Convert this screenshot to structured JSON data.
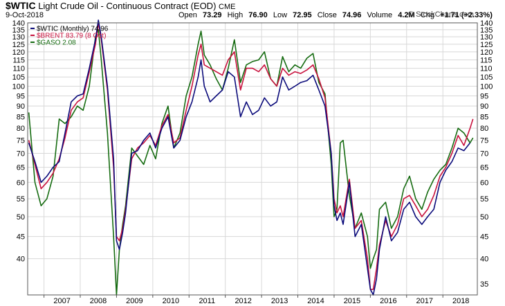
{
  "header": {
    "symbol": "$WTIC",
    "name": "Light Crude Oil - Continuous Contract (EOD)",
    "exchange": "CME",
    "date": "9-Oct-2018",
    "open_label": "Open",
    "open": "73.29",
    "high_label": "High",
    "high": "76.90",
    "low_label": "Low",
    "low": "72.95",
    "close_label": "Close",
    "close": "74.96",
    "volume_label": "Volume",
    "volume": "4.2M",
    "chg_label": "Chg",
    "chg": "+1.71 (+2.33%)",
    "copyright": "© StockCharts.com"
  },
  "colors": {
    "wtic": "#0a0a7a",
    "brent": "#c8103c",
    "gaso": "#156b10",
    "grid": "#d8d8d8",
    "frame": "#555555"
  },
  "chart_data": {
    "type": "line",
    "yscale": "log",
    "ylim": [
      33,
      140
    ],
    "xlim": [
      2006.55,
      2018.95
    ],
    "yticks_left": [
      40,
      45,
      50,
      55,
      60,
      65,
      70,
      75,
      80,
      85,
      90,
      95,
      100,
      105,
      110,
      115,
      120,
      125,
      130,
      135,
      140
    ],
    "yticks_right": [
      35,
      40,
      45,
      50,
      55,
      60,
      65,
      70,
      75,
      80,
      85,
      90,
      95,
      100,
      105,
      110,
      115,
      120,
      125,
      130,
      135,
      140
    ],
    "xticks": [
      "2007",
      "2008",
      "2009",
      "2010",
      "2011",
      "2012",
      "2013",
      "2014",
      "2015",
      "2016",
      "2017",
      "2018"
    ],
    "legend_position": "top-left",
    "series": [
      {
        "name": "$WTIC (Monthly) 74.96",
        "key": "wtic",
        "x": [
          2006.58,
          2006.75,
          2006.92,
          2007.08,
          2007.25,
          2007.42,
          2007.58,
          2007.75,
          2007.92,
          2008.08,
          2008.25,
          2008.42,
          2008.5,
          2008.58,
          2008.75,
          2008.92,
          2009.0,
          2009.08,
          2009.17,
          2009.25,
          2009.42,
          2009.58,
          2009.75,
          2009.92,
          2010.08,
          2010.25,
          2010.42,
          2010.58,
          2010.75,
          2010.92,
          2011.08,
          2011.25,
          2011.33,
          2011.42,
          2011.58,
          2011.75,
          2011.92,
          2012.08,
          2012.25,
          2012.42,
          2012.58,
          2012.75,
          2012.92,
          2013.08,
          2013.25,
          2013.42,
          2013.58,
          2013.75,
          2013.92,
          2014.08,
          2014.25,
          2014.42,
          2014.58,
          2014.75,
          2014.92,
          2015.0,
          2015.08,
          2015.17,
          2015.25,
          2015.42,
          2015.58,
          2015.75,
          2015.92,
          2016.0,
          2016.08,
          2016.17,
          2016.25,
          2016.42,
          2016.58,
          2016.75,
          2016.92,
          2017.08,
          2017.25,
          2017.42,
          2017.58,
          2017.75,
          2017.92,
          2018.08,
          2018.25,
          2018.42,
          2018.58,
          2018.75
        ],
        "y": [
          74,
          67,
          60,
          62,
          65,
          67,
          78,
          92,
          95,
          96,
          110,
          128,
          142,
          130,
          100,
          68,
          44,
          42,
          46,
          51,
          70,
          71,
          75,
          78,
          72,
          80,
          85,
          72,
          75,
          85,
          92,
          105,
          115,
          100,
          92,
          95,
          98,
          108,
          105,
          85,
          92,
          86,
          88,
          94,
          90,
          92,
          105,
          98,
          100,
          102,
          103,
          106,
          98,
          90,
          70,
          53,
          49,
          51,
          48,
          60,
          45,
          48,
          38,
          34,
          33,
          36,
          42,
          50,
          44,
          46,
          52,
          54,
          50,
          48,
          50,
          52,
          60,
          64,
          67,
          72,
          71,
          74
        ]
      },
      {
        "name": "$BRENT 83.79 (8 Oct)",
        "key": "brent",
        "x": [
          2006.58,
          2006.75,
          2006.92,
          2007.08,
          2007.25,
          2007.42,
          2007.58,
          2007.75,
          2007.92,
          2008.08,
          2008.25,
          2008.42,
          2008.5,
          2008.58,
          2008.75,
          2008.92,
          2009.0,
          2009.08,
          2009.17,
          2009.25,
          2009.42,
          2009.58,
          2009.75,
          2009.92,
          2010.08,
          2010.25,
          2010.42,
          2010.58,
          2010.75,
          2010.92,
          2011.08,
          2011.25,
          2011.33,
          2011.42,
          2011.58,
          2011.75,
          2011.92,
          2012.08,
          2012.25,
          2012.42,
          2012.58,
          2012.75,
          2012.92,
          2013.08,
          2013.25,
          2013.42,
          2013.58,
          2013.75,
          2013.92,
          2014.08,
          2014.25,
          2014.42,
          2014.58,
          2014.75,
          2014.92,
          2015.0,
          2015.08,
          2015.17,
          2015.25,
          2015.42,
          2015.58,
          2015.75,
          2015.92,
          2016.0,
          2016.08,
          2016.17,
          2016.25,
          2016.42,
          2016.58,
          2016.75,
          2016.92,
          2017.08,
          2017.25,
          2017.42,
          2017.58,
          2017.75,
          2017.92,
          2018.08,
          2018.25,
          2018.42,
          2018.58,
          2018.75,
          2018.83
        ],
        "y": [
          75,
          66,
          58,
          60,
          63,
          68,
          76,
          88,
          92,
          94,
          108,
          125,
          140,
          128,
          98,
          65,
          45,
          44,
          47,
          52,
          68,
          72,
          74,
          77,
          73,
          81,
          86,
          74,
          76,
          88,
          100,
          118,
          125,
          112,
          110,
          108,
          106,
          115,
          120,
          98,
          110,
          110,
          108,
          112,
          104,
          100,
          110,
          106,
          108,
          107,
          109,
          112,
          104,
          94,
          70,
          55,
          51,
          53,
          50,
          61,
          47,
          49,
          40,
          34,
          34,
          38,
          43,
          49,
          45,
          48,
          55,
          56,
          53,
          50,
          52,
          56,
          62,
          65,
          70,
          77,
          73,
          80,
          84
        ]
      },
      {
        "name": "$GASO 2.08",
        "key": "gaso",
        "x": [
          2006.58,
          2006.75,
          2006.92,
          2007.08,
          2007.25,
          2007.42,
          2007.58,
          2007.75,
          2007.92,
          2008.08,
          2008.25,
          2008.42,
          2008.5,
          2008.58,
          2008.75,
          2008.92,
          2009.0,
          2009.08,
          2009.17,
          2009.25,
          2009.42,
          2009.58,
          2009.75,
          2009.92,
          2010.08,
          2010.25,
          2010.42,
          2010.58,
          2010.75,
          2010.92,
          2011.08,
          2011.25,
          2011.33,
          2011.42,
          2011.58,
          2011.75,
          2011.92,
          2012.08,
          2012.25,
          2012.42,
          2012.58,
          2012.75,
          2012.92,
          2013.08,
          2013.25,
          2013.42,
          2013.58,
          2013.75,
          2013.92,
          2014.08,
          2014.25,
          2014.42,
          2014.58,
          2014.75,
          2014.92,
          2015.0,
          2015.08,
          2015.17,
          2015.25,
          2015.42,
          2015.58,
          2015.75,
          2015.92,
          2016.0,
          2016.08,
          2016.17,
          2016.25,
          2016.42,
          2016.58,
          2016.75,
          2016.92,
          2017.08,
          2017.25,
          2017.42,
          2017.58,
          2017.75,
          2017.92,
          2018.08,
          2018.25,
          2018.42,
          2018.58,
          2018.75,
          2018.83
        ],
        "y": [
          87,
          60,
          53,
          55,
          62,
          84,
          82,
          85,
          90,
          88,
          100,
          130,
          135,
          115,
          78,
          45,
          33,
          42,
          48,
          53,
          72,
          69,
          66,
          73,
          68,
          82,
          90,
          72,
          78,
          95,
          105,
          125,
          134,
          118,
          112,
          104,
          98,
          110,
          128,
          102,
          112,
          114,
          115,
          120,
          104,
          100,
          117,
          108,
          112,
          110,
          116,
          119,
          102,
          96,
          66,
          50,
          52,
          74,
          75,
          56,
          47,
          51,
          45,
          38,
          40,
          42,
          52,
          54,
          47,
          50,
          58,
          62,
          55,
          52,
          57,
          61,
          64,
          66,
          72,
          80,
          78,
          74,
          76
        ]
      }
    ]
  }
}
